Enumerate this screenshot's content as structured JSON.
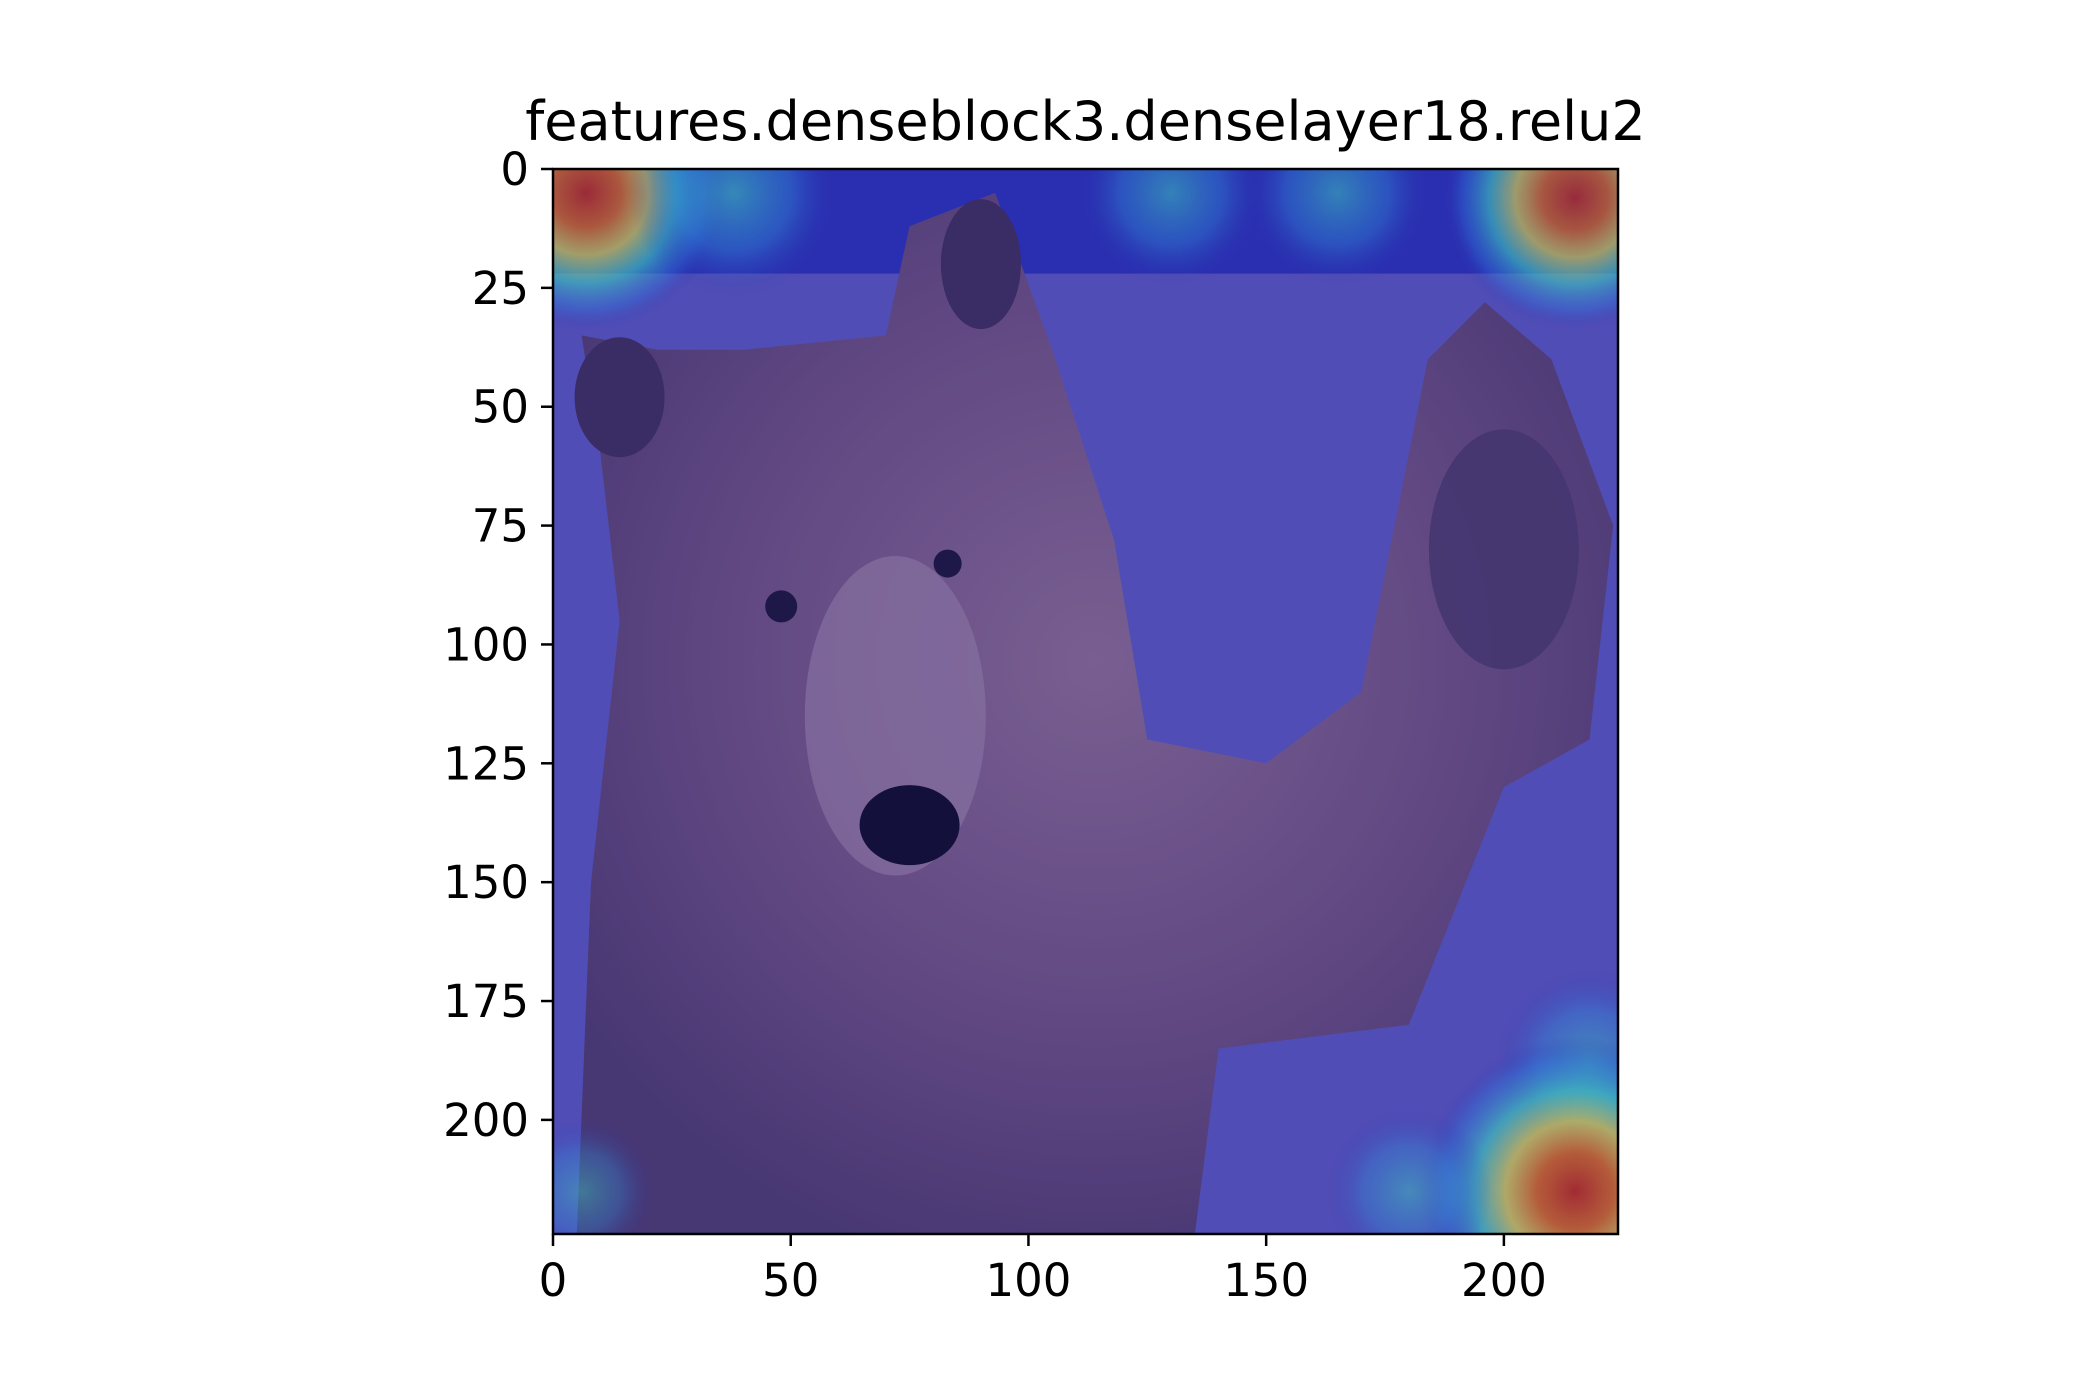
{
  "chart_data": {
    "type": "heatmap",
    "title": "features.denseblock3.denselayer18.relu2",
    "subtitle": "",
    "xlabel": "",
    "ylabel": "",
    "xlim": [
      0,
      224
    ],
    "ylim": [
      224,
      0
    ],
    "x_ticks": [
      0,
      50,
      100,
      150,
      200
    ],
    "y_ticks": [
      0,
      25,
      50,
      75,
      100,
      125,
      150,
      175,
      200
    ],
    "x_tick_labels": [
      "0",
      "50",
      "100",
      "150",
      "200"
    ],
    "y_tick_labels": [
      "0",
      "25",
      "50",
      "75",
      "100",
      "125",
      "150",
      "175",
      "200"
    ],
    "grid": false,
    "legend": "none",
    "colormap": "jet",
    "background_image": "bear-waving-paw",
    "overlay_colors": {
      "low": "#2a2fb0",
      "mid_low": "#2f7fe0",
      "mid": "#3fe0c0",
      "mid_high": "#e8e040",
      "high": "#e06a10",
      "peak": "#c02a10"
    },
    "hotspots": [
      {
        "x": 7,
        "y": 5,
        "value": 0.85
      },
      {
        "x": 38,
        "y": 5,
        "value": 0.55
      },
      {
        "x": 130,
        "y": 5,
        "value": 0.45
      },
      {
        "x": 165,
        "y": 5,
        "value": 0.45
      },
      {
        "x": 215,
        "y": 6,
        "value": 0.8
      },
      {
        "x": 218,
        "y": 188,
        "value": 0.45
      },
      {
        "x": 215,
        "y": 215,
        "value": 1.0
      },
      {
        "x": 180,
        "y": 215,
        "value": 0.35
      },
      {
        "x": 6,
        "y": 215,
        "value": 0.25
      }
    ]
  }
}
